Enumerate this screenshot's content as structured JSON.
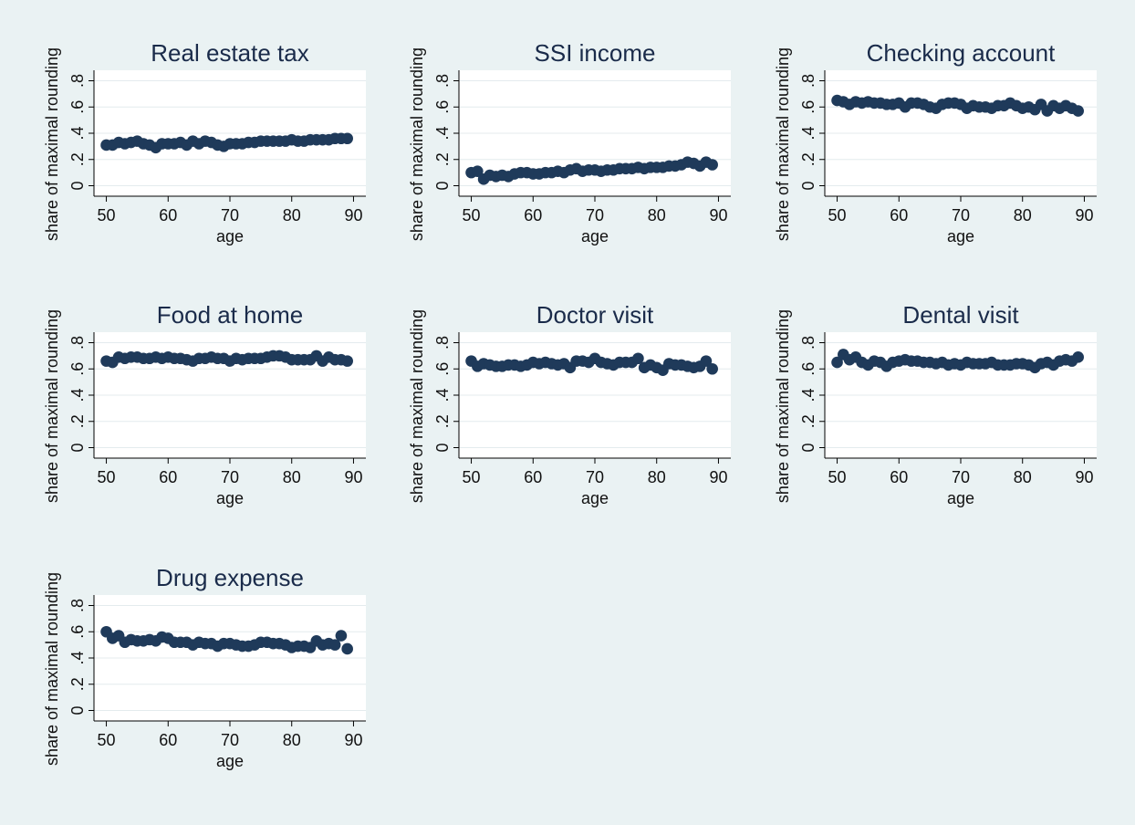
{
  "figure": {
    "background": "#eaf2f3"
  },
  "chart_data": [
    {
      "type": "scatter",
      "title": "Real estate tax",
      "xlabel": "age",
      "ylabel": "share of maximal rounding",
      "xlim": [
        48,
        92
      ],
      "ylim": [
        -0.08,
        0.88
      ],
      "xticks": [
        50,
        60,
        70,
        80,
        90
      ],
      "yticks": [
        0,
        0.2,
        0.4,
        0.6,
        0.8
      ],
      "yticklabels": [
        "0",
        ".2",
        ".4",
        ".6",
        ".8"
      ],
      "grid": true,
      "marker_color": "#1f3a5a",
      "series": [
        {
          "x": [
            50,
            51,
            52,
            53,
            54,
            55,
            56,
            57,
            58,
            59,
            60,
            61,
            62,
            63,
            64,
            65,
            66,
            67,
            68,
            69,
            70,
            71,
            72,
            73,
            74,
            75,
            76,
            77,
            78,
            79,
            80,
            81,
            82,
            83,
            84,
            85,
            86,
            87,
            88,
            89
          ],
          "y": [
            0.31,
            0.31,
            0.33,
            0.32,
            0.33,
            0.34,
            0.32,
            0.31,
            0.29,
            0.32,
            0.32,
            0.32,
            0.33,
            0.31,
            0.34,
            0.32,
            0.34,
            0.33,
            0.31,
            0.3,
            0.32,
            0.32,
            0.32,
            0.33,
            0.33,
            0.34,
            0.34,
            0.34,
            0.34,
            0.34,
            0.35,
            0.34,
            0.34,
            0.35,
            0.35,
            0.35,
            0.35,
            0.36,
            0.36,
            0.36
          ]
        }
      ]
    },
    {
      "type": "scatter",
      "title": "SSI income",
      "xlabel": "age",
      "ylabel": "share of maximal rounding",
      "xlim": [
        48,
        92
      ],
      "ylim": [
        -0.08,
        0.88
      ],
      "xticks": [
        50,
        60,
        70,
        80,
        90
      ],
      "yticks": [
        0,
        0.2,
        0.4,
        0.6,
        0.8
      ],
      "yticklabels": [
        "0",
        ".2",
        ".4",
        ".6",
        ".8"
      ],
      "grid": true,
      "marker_color": "#1f3a5a",
      "series": [
        {
          "x": [
            50,
            51,
            52,
            53,
            54,
            55,
            56,
            57,
            58,
            59,
            60,
            61,
            62,
            63,
            64,
            65,
            66,
            67,
            68,
            69,
            70,
            71,
            72,
            73,
            74,
            75,
            76,
            77,
            78,
            79,
            80,
            81,
            82,
            83,
            84,
            85,
            86,
            87,
            88,
            89
          ],
          "y": [
            0.1,
            0.11,
            0.05,
            0.08,
            0.07,
            0.08,
            0.07,
            0.09,
            0.1,
            0.1,
            0.09,
            0.09,
            0.1,
            0.1,
            0.11,
            0.1,
            0.12,
            0.13,
            0.11,
            0.12,
            0.12,
            0.11,
            0.12,
            0.12,
            0.13,
            0.13,
            0.13,
            0.14,
            0.13,
            0.14,
            0.14,
            0.14,
            0.15,
            0.15,
            0.16,
            0.18,
            0.17,
            0.15,
            0.18,
            0.16
          ]
        }
      ]
    },
    {
      "type": "scatter",
      "title": "Checking account",
      "xlabel": "age",
      "ylabel": "share of maximal rounding",
      "xlim": [
        48,
        92
      ],
      "ylim": [
        -0.08,
        0.88
      ],
      "xticks": [
        50,
        60,
        70,
        80,
        90
      ],
      "yticks": [
        0,
        0.2,
        0.4,
        0.6,
        0.8
      ],
      "yticklabels": [
        "0",
        ".2",
        ".4",
        ".6",
        ".8"
      ],
      "grid": true,
      "marker_color": "#1f3a5a",
      "series": [
        {
          "x": [
            50,
            51,
            52,
            53,
            54,
            55,
            56,
            57,
            58,
            59,
            60,
            61,
            62,
            63,
            64,
            65,
            66,
            67,
            68,
            69,
            70,
            71,
            72,
            73,
            74,
            75,
            76,
            77,
            78,
            79,
            80,
            81,
            82,
            83,
            84,
            85,
            86,
            87,
            88,
            89
          ],
          "y": [
            0.65,
            0.64,
            0.62,
            0.64,
            0.63,
            0.64,
            0.63,
            0.63,
            0.62,
            0.62,
            0.63,
            0.6,
            0.63,
            0.63,
            0.62,
            0.6,
            0.59,
            0.62,
            0.63,
            0.63,
            0.62,
            0.59,
            0.61,
            0.6,
            0.6,
            0.59,
            0.61,
            0.61,
            0.63,
            0.61,
            0.59,
            0.6,
            0.58,
            0.62,
            0.57,
            0.61,
            0.59,
            0.61,
            0.59,
            0.57
          ]
        }
      ]
    },
    {
      "type": "scatter",
      "title": "Food at home",
      "xlabel": "age",
      "ylabel": "share of maximal rounding",
      "xlim": [
        48,
        92
      ],
      "ylim": [
        -0.08,
        0.88
      ],
      "xticks": [
        50,
        60,
        70,
        80,
        90
      ],
      "yticks": [
        0,
        0.2,
        0.4,
        0.6,
        0.8
      ],
      "yticklabels": [
        "0",
        ".2",
        ".4",
        ".6",
        ".8"
      ],
      "grid": true,
      "marker_color": "#1f3a5a",
      "series": [
        {
          "x": [
            50,
            51,
            52,
            53,
            54,
            55,
            56,
            57,
            58,
            59,
            60,
            61,
            62,
            63,
            64,
            65,
            66,
            67,
            68,
            69,
            70,
            71,
            72,
            73,
            74,
            75,
            76,
            77,
            78,
            79,
            80,
            81,
            82,
            83,
            84,
            85,
            86,
            87,
            88,
            89
          ],
          "y": [
            0.66,
            0.65,
            0.69,
            0.68,
            0.69,
            0.69,
            0.68,
            0.68,
            0.69,
            0.68,
            0.69,
            0.68,
            0.68,
            0.67,
            0.66,
            0.68,
            0.68,
            0.69,
            0.68,
            0.68,
            0.66,
            0.68,
            0.67,
            0.68,
            0.68,
            0.68,
            0.69,
            0.7,
            0.7,
            0.69,
            0.67,
            0.67,
            0.67,
            0.67,
            0.7,
            0.66,
            0.69,
            0.67,
            0.67,
            0.66
          ]
        }
      ]
    },
    {
      "type": "scatter",
      "title": "Doctor visit",
      "xlabel": "age",
      "ylabel": "share of maximal rounding",
      "xlim": [
        48,
        92
      ],
      "ylim": [
        -0.08,
        0.88
      ],
      "xticks": [
        50,
        60,
        70,
        80,
        90
      ],
      "yticks": [
        0,
        0.2,
        0.4,
        0.6,
        0.8
      ],
      "yticklabels": [
        "0",
        ".2",
        ".4",
        ".6",
        ".8"
      ],
      "grid": true,
      "marker_color": "#1f3a5a",
      "series": [
        {
          "x": [
            50,
            51,
            52,
            53,
            54,
            55,
            56,
            57,
            58,
            59,
            60,
            61,
            62,
            63,
            64,
            65,
            66,
            67,
            68,
            69,
            70,
            71,
            72,
            73,
            74,
            75,
            76,
            77,
            78,
            79,
            80,
            81,
            82,
            83,
            84,
            85,
            86,
            87,
            88,
            89
          ],
          "y": [
            0.66,
            0.62,
            0.64,
            0.63,
            0.62,
            0.62,
            0.63,
            0.63,
            0.62,
            0.63,
            0.65,
            0.64,
            0.65,
            0.64,
            0.63,
            0.64,
            0.61,
            0.66,
            0.66,
            0.65,
            0.68,
            0.65,
            0.64,
            0.63,
            0.65,
            0.65,
            0.65,
            0.68,
            0.61,
            0.63,
            0.61,
            0.59,
            0.64,
            0.63,
            0.63,
            0.62,
            0.61,
            0.62,
            0.66,
            0.6
          ]
        }
      ]
    },
    {
      "type": "scatter",
      "title": "Dental visit",
      "xlabel": "age",
      "ylabel": "share of maximal rounding",
      "xlim": [
        48,
        92
      ],
      "ylim": [
        -0.08,
        0.88
      ],
      "xticks": [
        50,
        60,
        70,
        80,
        90
      ],
      "yticks": [
        0,
        0.2,
        0.4,
        0.6,
        0.8
      ],
      "yticklabels": [
        "0",
        ".2",
        ".4",
        ".6",
        ".8"
      ],
      "grid": true,
      "marker_color": "#1f3a5a",
      "series": [
        {
          "x": [
            50,
            51,
            52,
            53,
            54,
            55,
            56,
            57,
            58,
            59,
            60,
            61,
            62,
            63,
            64,
            65,
            66,
            67,
            68,
            69,
            70,
            71,
            72,
            73,
            74,
            75,
            76,
            77,
            78,
            79,
            80,
            81,
            82,
            83,
            84,
            85,
            86,
            87,
            88,
            89
          ],
          "y": [
            0.65,
            0.71,
            0.67,
            0.69,
            0.65,
            0.63,
            0.66,
            0.65,
            0.62,
            0.65,
            0.66,
            0.67,
            0.66,
            0.66,
            0.65,
            0.65,
            0.64,
            0.65,
            0.63,
            0.64,
            0.63,
            0.65,
            0.64,
            0.64,
            0.64,
            0.65,
            0.63,
            0.63,
            0.63,
            0.64,
            0.64,
            0.63,
            0.61,
            0.64,
            0.65,
            0.63,
            0.66,
            0.67,
            0.66,
            0.69
          ]
        }
      ]
    },
    {
      "type": "scatter",
      "title": "Drug expense",
      "xlabel": "age",
      "ylabel": "share of maximal rounding",
      "xlim": [
        48,
        92
      ],
      "ylim": [
        -0.08,
        0.88
      ],
      "xticks": [
        50,
        60,
        70,
        80,
        90
      ],
      "yticks": [
        0,
        0.2,
        0.4,
        0.6,
        0.8
      ],
      "yticklabels": [
        "0",
        ".2",
        ".4",
        ".6",
        ".8"
      ],
      "grid": true,
      "marker_color": "#1f3a5a",
      "series": [
        {
          "x": [
            50,
            51,
            52,
            53,
            54,
            55,
            56,
            57,
            58,
            59,
            60,
            61,
            62,
            63,
            64,
            65,
            66,
            67,
            68,
            69,
            70,
            71,
            72,
            73,
            74,
            75,
            76,
            77,
            78,
            79,
            80,
            81,
            82,
            83,
            84,
            85,
            86,
            87,
            88,
            89
          ],
          "y": [
            0.6,
            0.55,
            0.57,
            0.52,
            0.54,
            0.53,
            0.53,
            0.54,
            0.53,
            0.56,
            0.55,
            0.52,
            0.52,
            0.52,
            0.5,
            0.52,
            0.51,
            0.51,
            0.49,
            0.51,
            0.51,
            0.5,
            0.49,
            0.49,
            0.5,
            0.52,
            0.52,
            0.51,
            0.51,
            0.5,
            0.48,
            0.49,
            0.49,
            0.48,
            0.53,
            0.5,
            0.51,
            0.5,
            0.57,
            0.47
          ]
        }
      ]
    }
  ]
}
